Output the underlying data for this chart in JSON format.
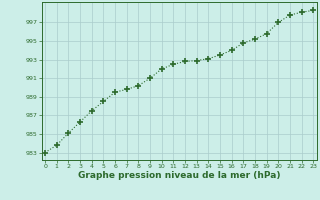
{
  "x": [
    0,
    1,
    2,
    3,
    4,
    5,
    6,
    7,
    8,
    9,
    10,
    11,
    12,
    13,
    14,
    15,
    16,
    17,
    18,
    19,
    20,
    21,
    22,
    23
  ],
  "y": [
    983.0,
    983.8,
    985.1,
    986.3,
    987.5,
    988.5,
    989.5,
    989.8,
    990.2,
    991.0,
    992.0,
    992.5,
    992.8,
    992.9,
    993.1,
    993.5,
    994.0,
    994.8,
    995.2,
    995.8,
    997.0,
    997.8,
    998.1,
    998.3
  ],
  "line_color": "#2d6a2d",
  "marker": "+",
  "marker_size": 5,
  "linewidth": 0.8,
  "background_color": "#cceee8",
  "grid_color": "#aacccc",
  "xlabel": "Graphe pression niveau de la mer (hPa)",
  "xlabel_fontsize": 6.5,
  "ylabel_ticks": [
    983,
    985,
    987,
    989,
    991,
    993,
    995,
    997
  ],
  "ylim": [
    982.2,
    999.2
  ],
  "xlim": [
    -0.3,
    23.3
  ],
  "xticks": [
    0,
    1,
    2,
    3,
    4,
    5,
    6,
    7,
    8,
    9,
    10,
    11,
    12,
    13,
    14,
    15,
    16,
    17,
    18,
    19,
    20,
    21,
    22,
    23
  ]
}
